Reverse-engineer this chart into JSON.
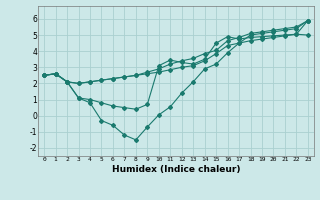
{
  "xlabel": "Humidex (Indice chaleur)",
  "background_color": "#cce8e8",
  "grid_color": "#aad0d0",
  "line_color": "#1a7a6e",
  "xlim": [
    -0.5,
    23.5
  ],
  "ylim": [
    -2.5,
    6.8
  ],
  "xticks": [
    0,
    1,
    2,
    3,
    4,
    5,
    6,
    7,
    8,
    9,
    10,
    11,
    12,
    13,
    14,
    15,
    16,
    17,
    18,
    19,
    20,
    21,
    22,
    23
  ],
  "yticks": [
    -2,
    -1,
    0,
    1,
    2,
    3,
    4,
    5,
    6
  ],
  "line1_x": [
    0,
    1,
    2,
    3,
    4,
    5,
    6,
    7,
    8,
    9,
    10,
    11,
    12,
    13,
    14,
    15,
    16,
    17,
    18,
    19,
    20,
    21,
    22,
    23
  ],
  "line1_y": [
    2.5,
    2.6,
    2.1,
    2.0,
    2.1,
    2.2,
    2.3,
    2.4,
    2.5,
    2.7,
    2.9,
    3.2,
    3.4,
    3.55,
    3.85,
    4.05,
    4.65,
    4.85,
    5.1,
    5.2,
    5.3,
    5.4,
    5.5,
    5.9
  ],
  "line2_x": [
    0,
    1,
    2,
    3,
    4,
    5,
    6,
    7,
    8,
    9,
    10,
    11,
    12,
    13,
    14,
    15,
    16,
    17,
    18,
    19,
    20,
    21,
    22,
    23
  ],
  "line2_y": [
    2.5,
    2.6,
    2.1,
    2.0,
    2.1,
    2.2,
    2.3,
    2.4,
    2.5,
    2.6,
    2.7,
    2.85,
    3.0,
    3.1,
    3.4,
    3.85,
    4.35,
    4.5,
    4.65,
    4.75,
    4.85,
    4.95,
    5.05,
    5.0
  ],
  "line3_x": [
    0,
    1,
    2,
    3,
    4,
    5,
    6,
    7,
    8,
    9,
    10,
    11,
    12,
    13,
    14,
    15,
    16,
    17,
    18,
    19,
    20,
    21,
    22,
    23
  ],
  "line3_y": [
    2.5,
    2.6,
    2.1,
    1.1,
    1.0,
    0.8,
    0.6,
    0.5,
    0.4,
    0.7,
    3.1,
    3.45,
    3.3,
    3.2,
    3.5,
    4.5,
    4.9,
    4.75,
    4.85,
    4.9,
    4.95,
    5.0,
    5.05,
    5.9
  ],
  "line4_x": [
    0,
    1,
    2,
    3,
    4,
    5,
    6,
    7,
    8,
    9,
    10,
    11,
    12,
    13,
    14,
    15,
    16,
    17,
    18,
    19,
    20,
    21,
    22,
    23
  ],
  "line4_y": [
    2.5,
    2.6,
    2.1,
    1.1,
    0.8,
    -0.3,
    -0.6,
    -1.2,
    -1.5,
    -0.7,
    0.05,
    0.55,
    1.4,
    2.1,
    2.9,
    3.2,
    3.9,
    4.5,
    5.0,
    5.1,
    5.2,
    5.3,
    5.4,
    5.9
  ]
}
